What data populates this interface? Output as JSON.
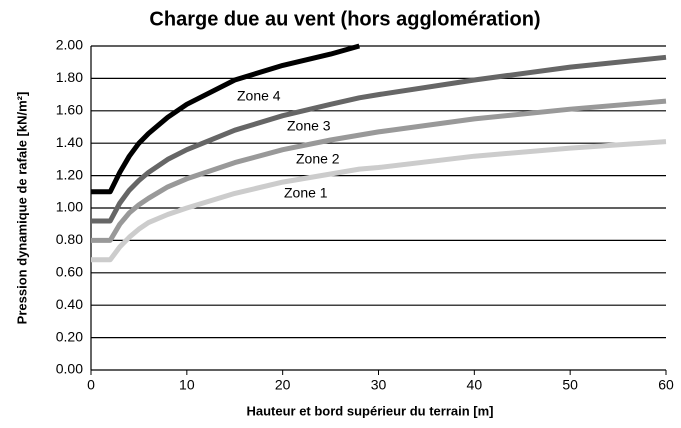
{
  "chart_data": {
    "type": "line",
    "title": "Charge due au vent (hors agglomération)",
    "x_label": "Hauteur et bord supérieur du terrain [m]",
    "y_label": "Pression dynamique de rafale [kN/m²]",
    "x": [
      0,
      2,
      3,
      4,
      5,
      6,
      8,
      10,
      15,
      20,
      25,
      28,
      30,
      40,
      50,
      60
    ],
    "series": [
      {
        "name": "Zone 4",
        "color": "#000000",
        "values": [
          1.1,
          1.1,
          1.22,
          1.32,
          1.4,
          1.46,
          1.56,
          1.64,
          1.79,
          1.88,
          1.95,
          2.0,
          null,
          null,
          null,
          null
        ]
      },
      {
        "name": "Zone 3",
        "color": "#666666",
        "values": [
          0.92,
          0.92,
          1.03,
          1.11,
          1.17,
          1.22,
          1.3,
          1.36,
          1.48,
          1.57,
          1.64,
          1.68,
          1.7,
          1.79,
          1.87,
          1.93
        ]
      },
      {
        "name": "Zone 2",
        "color": "#999999",
        "values": [
          0.8,
          0.8,
          0.9,
          0.97,
          1.02,
          1.06,
          1.13,
          1.18,
          1.28,
          1.36,
          1.42,
          1.45,
          1.47,
          1.55,
          1.61,
          1.66
        ]
      },
      {
        "name": "Zone 1",
        "color": "#cccccc",
        "values": [
          0.68,
          0.68,
          0.76,
          0.82,
          0.87,
          0.91,
          0.96,
          1.0,
          1.09,
          1.16,
          1.21,
          1.24,
          1.25,
          1.32,
          1.37,
          1.41
        ]
      }
    ],
    "xlim": [
      0,
      60
    ],
    "xticks": [
      0,
      10,
      20,
      30,
      40,
      50,
      60
    ],
    "ylim": [
      0,
      2
    ],
    "yticks": [
      {
        "value": 0,
        "label": "0.00"
      },
      {
        "value": 0.2,
        "label": "0.20"
      },
      {
        "value": 0.4,
        "label": "0.40"
      },
      {
        "value": 0.6,
        "label": "0.60"
      },
      {
        "value": 0.8,
        "label": "0.80"
      },
      {
        "value": 1,
        "label": "1.00"
      },
      {
        "value": 1.2,
        "label": "1.20"
      },
      {
        "value": 1.4,
        "label": "1.40"
      },
      {
        "value": 1.6,
        "label": "1.60"
      },
      {
        "value": 1.8,
        "label": "1.80"
      },
      {
        "value": 2,
        "label": "2.00"
      }
    ],
    "grid": true
  }
}
